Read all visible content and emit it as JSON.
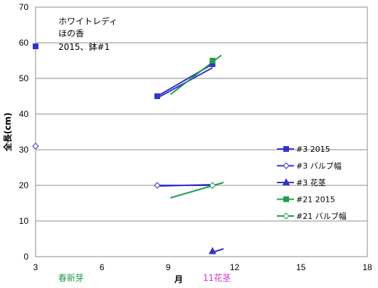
{
  "chart_data": {
    "type": "scatter",
    "annotations": [
      "ホワイトレディ",
      "ほの香",
      "2015、鉢#1"
    ],
    "ylabel": "全長(cm)",
    "xlabel": "月",
    "xlim": [
      3,
      18
    ],
    "ylim": [
      0,
      70
    ],
    "xticks": [
      3,
      6,
      9,
      12,
      15,
      18
    ],
    "yticks": [
      0,
      10,
      20,
      30,
      40,
      50,
      60,
      70
    ],
    "grid": "horizontal",
    "legend_position": "right",
    "x_notes": [
      {
        "text": "春新芽",
        "x": 4.6,
        "color": "#1e9e4a"
      },
      {
        "text": "11花茎",
        "x": 11.2,
        "color": "#cc33cc"
      }
    ],
    "series": [
      {
        "name": "#3 2015",
        "color": "#3333cc",
        "marker": "square-filled",
        "points": [
          [
            3,
            59
          ],
          [
            8.5,
            45
          ],
          [
            11,
            54
          ]
        ],
        "trend": [
          [
            8.5,
            44.5
          ],
          [
            11,
            53
          ]
        ]
      },
      {
        "name": "#3 バルブ幅",
        "color": "#3333cc",
        "marker": "diamond-open",
        "points": [
          [
            3,
            31
          ],
          [
            8.5,
            20
          ],
          [
            11,
            20
          ]
        ],
        "trend": [
          [
            8.5,
            19.8
          ],
          [
            11,
            20.2
          ]
        ]
      },
      {
        "name": "#3 花茎",
        "color": "#3333cc",
        "marker": "triangle-filled",
        "points": [
          [
            11,
            1.5
          ]
        ],
        "trend": [
          [
            11,
            1.2
          ],
          [
            11.5,
            2.2
          ]
        ]
      },
      {
        "name": "#21 2015",
        "color": "#1e9e4a",
        "marker": "square-filled",
        "points": [
          [
            11,
            55
          ]
        ],
        "trend": [
          [
            9.1,
            45.5
          ],
          [
            11.4,
            56.5
          ]
        ]
      },
      {
        "name": "#21 バルブ幅",
        "color": "#1e9e4a",
        "marker": "diamond-open",
        "points": [
          [
            11,
            20
          ]
        ],
        "trend": [
          [
            9.1,
            16.5
          ],
          [
            11.5,
            20.8
          ]
        ]
      }
    ]
  }
}
